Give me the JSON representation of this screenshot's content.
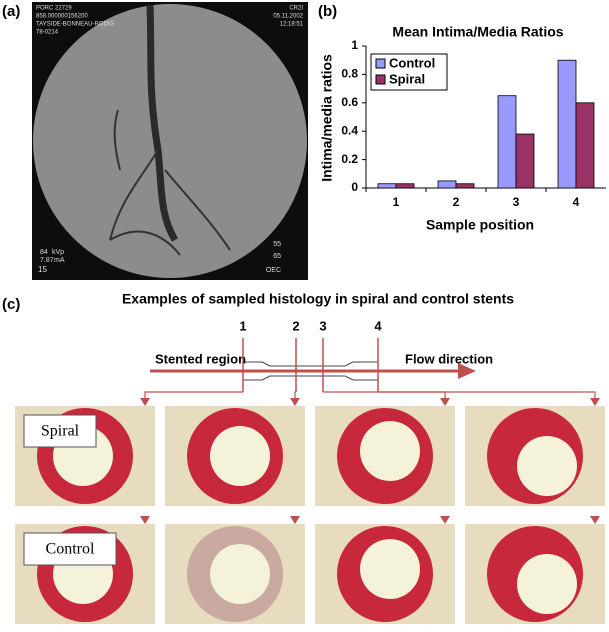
{
  "panel_labels": [
    "(a)",
    "(b)",
    "(c)"
  ],
  "angiogram": {
    "top_left": [
      "PORC 22729",
      "858.000000156200",
      "TAYSIDE-BONNEAU-RODIG",
      "78-0214"
    ],
    "top_right": [
      "CR2I",
      "05.11.2002",
      "12:18:51"
    ],
    "bottom_left": [
      "84",
      "kVp",
      "7.87",
      "mA",
      "15"
    ],
    "bottom_right": [
      "55",
      "65",
      "OEC"
    ]
  },
  "chart_data": {
    "type": "bar",
    "title": "Mean Intima/Media Ratios",
    "x_label": "Sample position",
    "y_label": "Intima/media ratios",
    "categories": [
      "1",
      "2",
      "3",
      "4"
    ],
    "series": [
      {
        "name": "Control",
        "color": "#9999ff",
        "values": [
          0.03,
          0.05,
          0.65,
          0.9
        ]
      },
      {
        "name": "Spiral",
        "color": "#993366",
        "values": [
          0.03,
          0.03,
          0.38,
          0.6
        ]
      }
    ],
    "ylim": [
      0,
      1
    ],
    "yticks": [
      0,
      0.2,
      0.4,
      0.6,
      0.8,
      1
    ],
    "grid": false,
    "legend": "top-left"
  },
  "histology": {
    "title": "Examples of sampled histology in spiral and control stents",
    "positions": [
      "1",
      "2",
      "3",
      "4"
    ],
    "left_label": "Stented region",
    "right_label": "Flow direction",
    "rows": [
      "Spiral",
      "Control"
    ]
  }
}
